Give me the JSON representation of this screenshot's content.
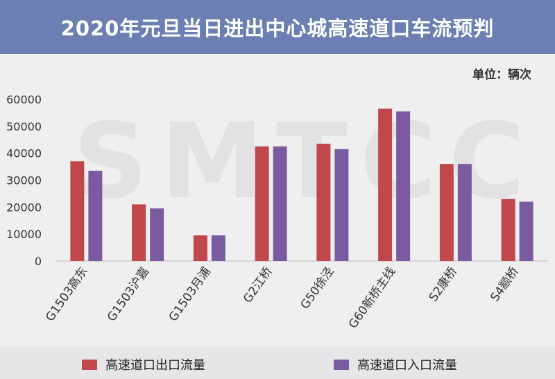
{
  "title": "2020年元旦当日进出中心城高速道口车流预判",
  "unit_label": "单位：辆次",
  "watermark": "SMTCC",
  "colors": {
    "exit": "#c0474b",
    "entry": "#7a5ba0",
    "title_bg": "#6b7fb3"
  },
  "chart_data": {
    "type": "bar",
    "categories": [
      "G1503高东",
      "G1503沪嘉",
      "G1503月浦",
      "G2江桥",
      "G50徐泾",
      "G60新桥主线",
      "S2康桥",
      "S4颛桥"
    ],
    "series": [
      {
        "name": "高速道口出口流量",
        "values": [
          37000,
          21000,
          9500,
          42500,
          43500,
          56500,
          36000,
          23000
        ]
      },
      {
        "name": "高速道口入口流量",
        "values": [
          33500,
          19500,
          9500,
          42500,
          41500,
          55500,
          36000,
          22000
        ]
      }
    ],
    "yticks": [
      "0",
      "10000",
      "20000",
      "30000",
      "40000",
      "50000",
      "60000"
    ],
    "ylim": [
      0,
      60000
    ],
    "legend_position": "bottom",
    "grid": false
  }
}
